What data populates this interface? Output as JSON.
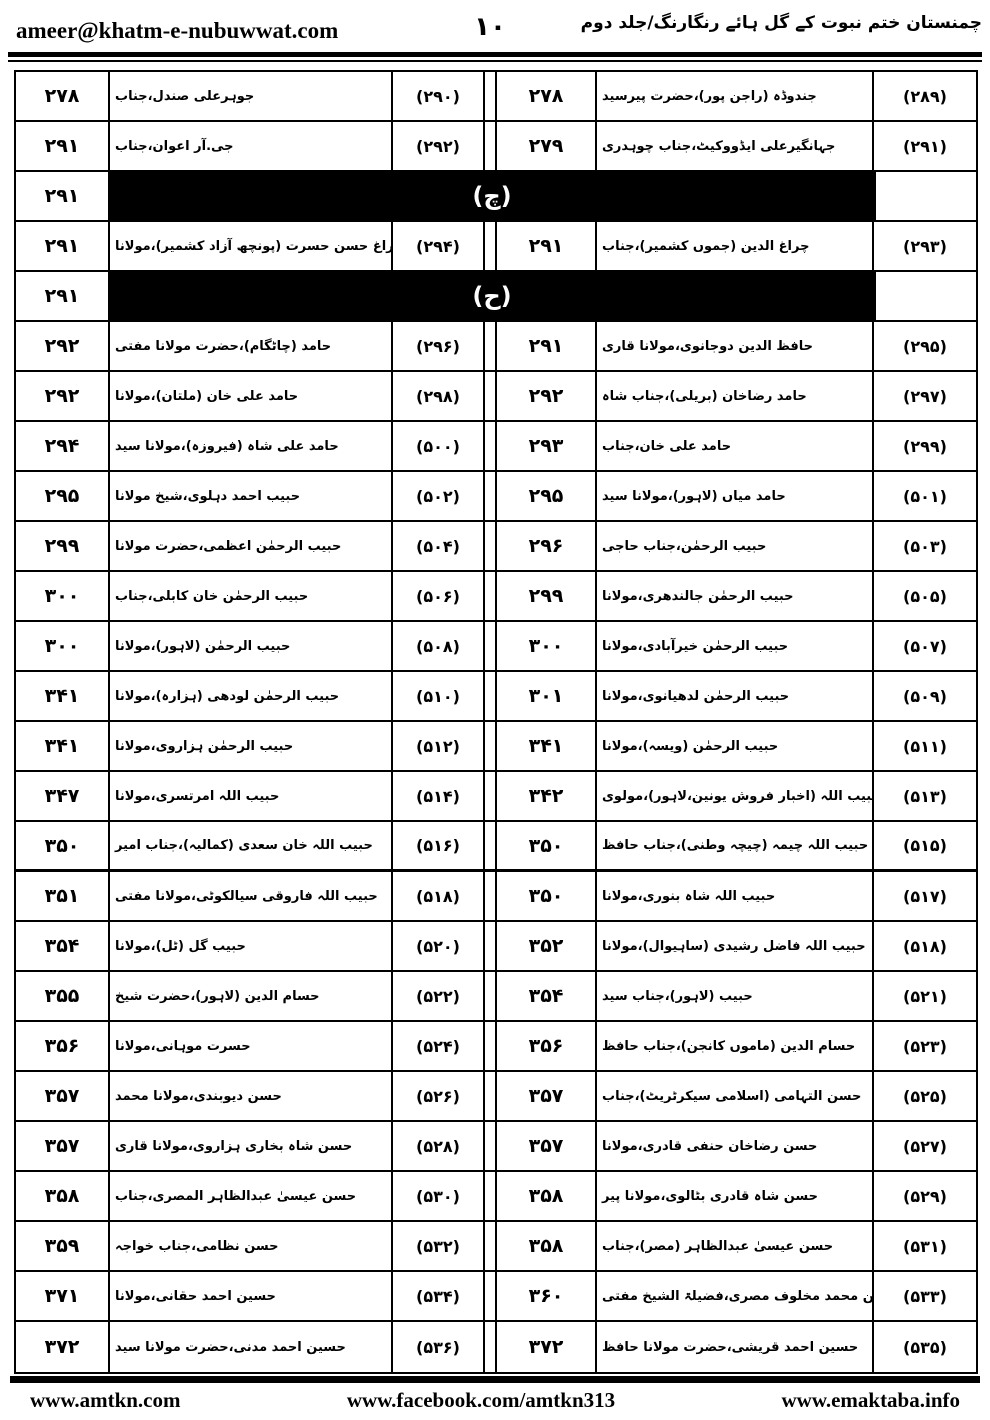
{
  "colors": {
    "ink": "#000000",
    "paper": "#ffffff"
  },
  "header": {
    "email": "ameer@khatm-e-nubuwwat.com",
    "page_number": "۱۰",
    "title": "چمنستان ختم نبوت کے گل ہائے رنگارنگ/جلد دوم"
  },
  "footer": {
    "left_url": "www.amtkn.com",
    "center_url": "www.facebook.com/amtkn313",
    "right_url": "www.emaktaba.info"
  },
  "table": {
    "direction": "rtl",
    "columns": [
      "page",
      "name",
      "entry"
    ],
    "rows": [
      {
        "type": "entries",
        "right": {
          "entry": "(۲۸۹)",
          "name": "جندوڈہ (راجن پور)،حضرت پیرسید",
          "page": "۲۷۸"
        },
        "left": {
          "entry": "(۲۹۰)",
          "name": "جوہرعلی صندل،جناب",
          "page": "۲۷۸"
        }
      },
      {
        "type": "entries",
        "right": {
          "entry": "(۲۹۱)",
          "name": "جہانگیرعلی ایڈووکیٹ،جناب چوہدری",
          "page": "۲۷۹"
        },
        "left": {
          "entry": "(۲۹۲)",
          "name": "جی.آر اعوان،جناب",
          "page": "۲۹۱"
        }
      },
      {
        "type": "section",
        "letter": "(چ)",
        "left_page": "۲۹۱"
      },
      {
        "type": "entries",
        "right": {
          "entry": "(۲۹۳)",
          "name": "چراغ الدین (جموں کشمیر)،جناب",
          "page": "۲۹۱"
        },
        "left": {
          "entry": "(۲۹۴)",
          "name": "چراغ حسن حسرت (پونچھ آزاد کشمیر)،مولانا",
          "page": "۲۹۱"
        }
      },
      {
        "type": "section",
        "letter": "(ح)",
        "left_page": "۲۹۱"
      },
      {
        "type": "entries",
        "right": {
          "entry": "(۲۹۵)",
          "name": "حافظ الدین دوجانوی،مولانا قاری",
          "page": "۲۹۱"
        },
        "left": {
          "entry": "(۲۹۶)",
          "name": "حامد (چاٹگام)،حضرت مولانا مفتی",
          "page": "۲۹۲"
        }
      },
      {
        "type": "entries",
        "right": {
          "entry": "(۲۹۷)",
          "name": "حامد رضاخان (بریلی)،جناب شاہ",
          "page": "۲۹۲"
        },
        "left": {
          "entry": "(۲۹۸)",
          "name": "حامد علی خان (ملتان)،مولانا",
          "page": "۲۹۲"
        }
      },
      {
        "type": "entries",
        "right": {
          "entry": "(۲۹۹)",
          "name": "حامد علی خان،جناب",
          "page": "۲۹۳"
        },
        "left": {
          "entry": "(۵۰۰)",
          "name": "حامد علی شاہ (فیروزہ)،مولانا سید",
          "page": "۲۹۴"
        }
      },
      {
        "type": "entries",
        "right": {
          "entry": "(۵۰۱)",
          "name": "حامد میاں (لاہور)،مولانا سید",
          "page": "۲۹۵"
        },
        "left": {
          "entry": "(۵۰۲)",
          "name": "حبیب احمد دہلوی،شیخ مولانا",
          "page": "۲۹۵"
        }
      },
      {
        "type": "entries",
        "right": {
          "entry": "(۵۰۳)",
          "name": "حبیب الرحمٰن،جناب حاجی",
          "page": "۲۹۶"
        },
        "left": {
          "entry": "(۵۰۴)",
          "name": "حبیب الرحمٰن اعظمی،حضرت مولانا",
          "page": "۲۹۹"
        }
      },
      {
        "type": "entries",
        "right": {
          "entry": "(۵۰۵)",
          "name": "حبیب الرحمٰن جالندھری،مولانا",
          "page": "۲۹۹"
        },
        "left": {
          "entry": "(۵۰۶)",
          "name": "حبیب الرحمٰن خان کابلی،جناب",
          "page": "۳۰۰"
        }
      },
      {
        "type": "entries",
        "right": {
          "entry": "(۵۰۷)",
          "name": "حبیب الرحمٰن خیرآبادی،مولانا",
          "page": "۳۰۰"
        },
        "left": {
          "entry": "(۵۰۸)",
          "name": "حبیب الرحمٰن (لاہور)،مولانا",
          "page": "۳۰۰"
        }
      },
      {
        "type": "entries",
        "right": {
          "entry": "(۵۰۹)",
          "name": "حبیب الرحمٰن لدھیانوی،مولانا",
          "page": "۳۰۱"
        },
        "left": {
          "entry": "(۵۱۰)",
          "name": "حبیب الرحمٰن لودھی (ہزارہ)،مولانا",
          "page": "۳۴۱"
        }
      },
      {
        "type": "entries",
        "right": {
          "entry": "(۵۱۱)",
          "name": "حبیب الرحمٰن (ویسہ)،مولانا",
          "page": "۳۴۱"
        },
        "left": {
          "entry": "(۵۱۲)",
          "name": "حبیب الرحمٰن ہزاروی،مولانا",
          "page": "۳۴۱"
        }
      },
      {
        "type": "entries",
        "right": {
          "entry": "(۵۱۳)",
          "name": "حبیب اللہ (اخبار فروش یونین،لاہور)،مولوی",
          "page": "۳۴۲"
        },
        "left": {
          "entry": "(۵۱۴)",
          "name": "حبیب اللہ امرتسری،مولانا",
          "page": "۳۴۷"
        }
      },
      {
        "type": "entries",
        "right": {
          "entry": "(۵۱۵)",
          "name": "حبیب اللہ چیمہ (چیچہ وطنی)،جناب حافظ",
          "page": "۳۵۰"
        },
        "left": {
          "entry": "(۵۱۶)",
          "name": "حبیب اللہ خان سعدی (کمالیہ)،جناب امیر",
          "page": "۳۵۰"
        }
      },
      {
        "type": "entries",
        "right": {
          "entry": "(۵۱۷)",
          "name": "حبیب اللہ شاہ بنوری،مولانا",
          "page": "۳۵۰"
        },
        "left": {
          "entry": "(۵۱۸)",
          "name": "حبیب اللہ فاروقی سیالکوٹی،مولانا مفتی",
          "page": "۳۵۱"
        }
      },
      {
        "type": "entries",
        "right": {
          "entry": "(۵۱۸)",
          "name": "حبیب اللہ فاضل رشیدی (ساہیوال)،مولانا",
          "page": "۳۵۲"
        },
        "left": {
          "entry": "(۵۲۰)",
          "name": "حبیب گل (ٹل)،مولانا",
          "page": "۳۵۴"
        }
      },
      {
        "type": "entries",
        "right": {
          "entry": "(۵۲۱)",
          "name": "حبیب (لاہور)،جناب سید",
          "page": "۳۵۴"
        },
        "left": {
          "entry": "(۵۲۲)",
          "name": "حسام الدین (لاہور)،حضرت شیخ",
          "page": "۳۵۵"
        }
      },
      {
        "type": "entries",
        "right": {
          "entry": "(۵۲۳)",
          "name": "حسام الدین (ماموں کانجن)،جناب حافظ",
          "page": "۳۵۶"
        },
        "left": {
          "entry": "(۵۲۴)",
          "name": "حسرت موہانی،مولانا",
          "page": "۳۵۶"
        }
      },
      {
        "type": "entries",
        "right": {
          "entry": "(۵۲۵)",
          "name": "حسن التہامی (اسلامی سیکرٹریٹ)،جناب",
          "page": "۳۵۷"
        },
        "left": {
          "entry": "(۵۲۶)",
          "name": "حسن دیوبندی،مولانا محمد",
          "page": "۳۵۷"
        }
      },
      {
        "type": "entries",
        "right": {
          "entry": "(۵۲۷)",
          "name": "حسن رضاخان حنفی قادری،مولانا",
          "page": "۳۵۷"
        },
        "left": {
          "entry": "(۵۲۸)",
          "name": "حسن شاہ بخاری ہزاروی،مولانا قاری",
          "page": "۳۵۷"
        }
      },
      {
        "type": "entries",
        "right": {
          "entry": "(۵۲۹)",
          "name": "حسن شاہ قادری بٹالوی،مولانا پیر",
          "page": "۳۵۸"
        },
        "left": {
          "entry": "(۵۳۰)",
          "name": "حسن عیسیٰ عبدالظاہر المصری،جناب",
          "page": "۳۵۸"
        }
      },
      {
        "type": "entries",
        "right": {
          "entry": "(۵۳۱)",
          "name": "حسن عیسیٰ عبدالظاہر (مصر)،جناب",
          "page": "۳۵۸"
        },
        "left": {
          "entry": "(۵۳۲)",
          "name": "حسن نظامی،جناب خواجہ",
          "page": "۳۵۹"
        }
      },
      {
        "type": "entries",
        "right": {
          "entry": "(۵۳۳)",
          "name": "حسنین بن محمد مخلوف مصری،فضیلۃ الشیخ مفتی",
          "page": "۳۶۰"
        },
        "left": {
          "entry": "(۵۳۴)",
          "name": "حسین احمد حقانی،مولانا",
          "page": "۳۷۱"
        }
      },
      {
        "type": "entries",
        "right": {
          "entry": "(۵۳۵)",
          "name": "حسین احمد قریشی،حضرت مولانا حافظ",
          "page": "۳۷۲"
        },
        "left": {
          "entry": "(۵۳۶)",
          "name": "حسین احمد مدنی،حضرت مولانا سید",
          "page": "۳۷۲"
        }
      }
    ]
  }
}
